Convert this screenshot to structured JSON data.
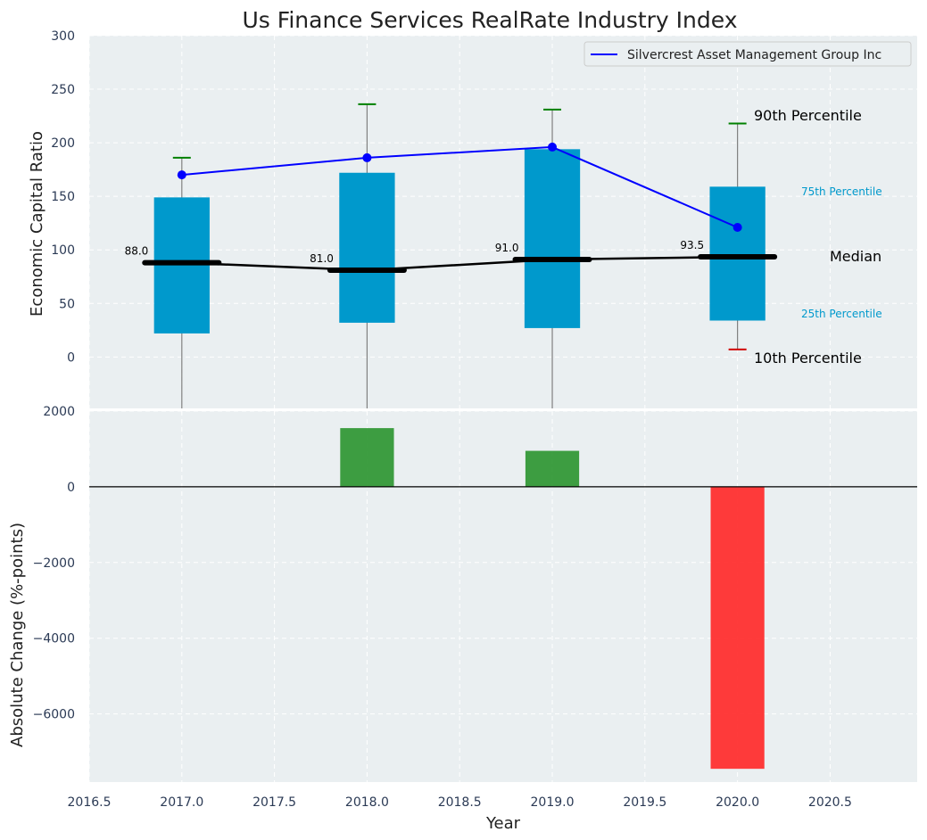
{
  "chart_data": [
    {
      "type": "box",
      "title": "Us Finance Services RealRate Industry Index",
      "ylabel": "Economic Capital Ratio",
      "ylim": [
        -48,
        300
      ],
      "xlim": [
        2016.5,
        2020.97
      ],
      "yticks": [
        0,
        50,
        100,
        150,
        200,
        250,
        300
      ],
      "grid": true,
      "legend_position": "top-right",
      "categories": [
        2017,
        2018,
        2019,
        2020
      ],
      "boxes": [
        {
          "year": 2017,
          "p10": -48,
          "p25": 22,
          "median": 88.0,
          "p75": 149,
          "p90": 186
        },
        {
          "year": 2018,
          "p10": -48,
          "p25": 32,
          "median": 81.0,
          "p75": 172,
          "p90": 236
        },
        {
          "year": 2019,
          "p10": -48,
          "p25": 27,
          "median": 91.0,
          "p75": 194,
          "p90": 231
        },
        {
          "year": 2020,
          "p10": 7,
          "p25": 34,
          "median": 93.5,
          "p75": 159,
          "p90": 218
        }
      ],
      "median_labels": [
        "88.0",
        "81.0",
        "91.0",
        "93.5"
      ],
      "series": [
        {
          "name": "Silvercrest Asset Management Group Inc",
          "color": "#0000ff",
          "x": [
            2017,
            2018,
            2019,
            2020
          ],
          "values": [
            170,
            186,
            196,
            121
          ]
        }
      ],
      "annotations": {
        "p90": "90th Percentile",
        "p75": "75th Percentile",
        "median": "Median",
        "p25": "25th Percentile",
        "p10": "10th Percentile"
      }
    },
    {
      "type": "bar",
      "ylabel": "Absolute Change (%-points)",
      "xlabel": "Year",
      "ylim": [
        -7800,
        2000
      ],
      "yticks": [
        -6000,
        -4000,
        -2000,
        0,
        2000
      ],
      "ytick_labels": [
        "−6000",
        "−4000",
        "−2000",
        "0",
        "2000"
      ],
      "xticks": [
        2016.5,
        2017.0,
        2017.5,
        2018.0,
        2018.5,
        2019.0,
        2019.5,
        2020.0,
        2020.5
      ],
      "xtick_labels": [
        "2016.5",
        "2017.0",
        "2017.5",
        "2018.0",
        "2018.5",
        "2019.0",
        "2019.5",
        "2020.0",
        "2020.5"
      ],
      "categories": [
        2018,
        2019,
        2020
      ],
      "values": [
        1550,
        950,
        -7450
      ]
    }
  ],
  "colors": {
    "box": "#0099cc",
    "median": "#000000",
    "line": "#0000ff",
    "positive": "#2e9632",
    "negative": "#ff2a2a",
    "p90_cap": "#008000",
    "p10_cap": "#d00000",
    "whisker": "#808080",
    "panel_bg": "#eaeff1",
    "grid": "#ffffff",
    "tick_text": "#2b3a55",
    "annotation_small": "#0099cc"
  }
}
